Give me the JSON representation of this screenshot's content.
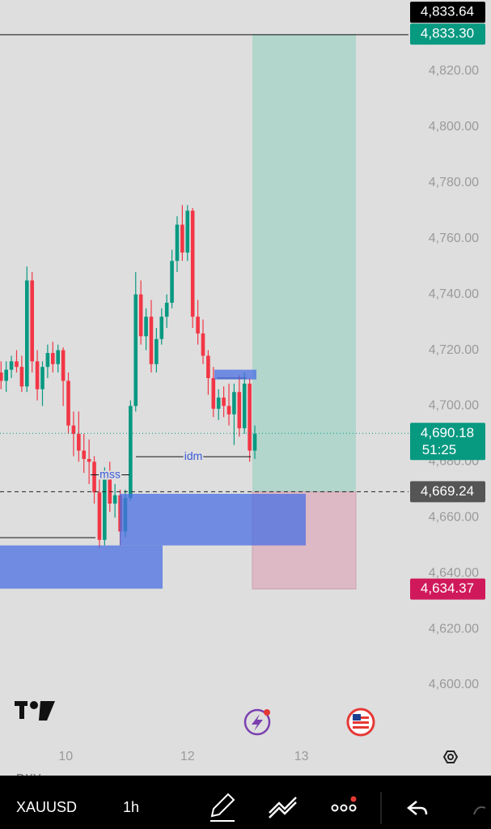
{
  "chart_data": {
    "type": "candlestick",
    "xlim": [
      -0.2,
      94.6
    ],
    "ylim": [
      4600,
      4820
    ],
    "yticks": [
      {
        "value": 4820,
        "label": "4,820.00"
      },
      {
        "value": 4800,
        "label": "4,800.00"
      },
      {
        "value": 4780,
        "label": "4,780.00"
      },
      {
        "value": 4760,
        "label": "4,760.00"
      },
      {
        "value": 4740,
        "label": "4,740.00"
      },
      {
        "value": 4720,
        "label": "4,720.00"
      },
      {
        "value": 4700,
        "label": "4,700.00"
      },
      {
        "value": 4680,
        "label": "4,680.00"
      },
      {
        "value": 4660,
        "label": "4,660.00"
      },
      {
        "value": 4640,
        "label": "4,640.00"
      },
      {
        "value": 4620,
        "label": "4,620.00"
      },
      {
        "value": 4600,
        "label": "4,600.00"
      }
    ],
    "xticks": [
      {
        "value": 12.5,
        "label": "10"
      },
      {
        "value": 36,
        "label": "12"
      },
      {
        "value": 58,
        "label": "13"
      }
    ],
    "up_color": "#089981",
    "down_color": "#f23645",
    "open": [
      4712,
      4709,
      4713,
      4716,
      4714,
      4707,
      4745,
      4716,
      4706,
      4714,
      4719,
      4715,
      4720,
      4709,
      4693,
      4690,
      4684,
      4681,
      4680,
      4669,
      4652,
      4675,
      4665,
      4668,
      4655,
      4667,
      4700,
      4740,
      4725,
      4732,
      4715,
      4724,
      4732,
      4737,
      4752,
      4765,
      4755,
      4770,
      4732,
      4726,
      4718,
      4710,
      4699,
      4703,
      4700,
      4697,
      4705,
      4692,
      4708,
      4684
    ],
    "high": [
      4716,
      4716,
      4718,
      4720,
      4718,
      4750,
      4748,
      4720,
      4716,
      4722,
      4723,
      4722,
      4721,
      4712,
      4698,
      4698,
      4690,
      4688,
      4682,
      4675,
      4678,
      4680,
      4672,
      4670,
      4670,
      4702,
      4748,
      4745,
      4735,
      4738,
      4728,
      4735,
      4740,
      4756,
      4768,
      4772,
      4772,
      4771,
      4738,
      4731,
      4720,
      4714,
      4706,
      4707,
      4708,
      4708,
      4711,
      4712,
      4710,
      4693
    ],
    "low": [
      4706,
      4705,
      4710,
      4712,
      4705,
      4705,
      4712,
      4702,
      4700,
      4710,
      4712,
      4712,
      4700,
      4690,
      4682,
      4680,
      4676,
      4672,
      4665,
      4649,
      4650,
      4662,
      4660,
      4650,
      4653,
      4666,
      4698,
      4722,
      4720,
      4712,
      4712,
      4722,
      4728,
      4735,
      4748,
      4752,
      4752,
      4728,
      4722,
      4715,
      4704,
      4696,
      4695,
      4696,
      4693,
      4686,
      4689,
      4690,
      4680,
      4681
    ],
    "close": [
      4709,
      4713,
      4716,
      4714,
      4707,
      4745,
      4716,
      4706,
      4714,
      4719,
      4715,
      4720,
      4709,
      4693,
      4690,
      4684,
      4681,
      4680,
      4669,
      4652,
      4675,
      4665,
      4668,
      4655,
      4667,
      4700,
      4740,
      4725,
      4732,
      4715,
      4724,
      4732,
      4737,
      4752,
      4765,
      4755,
      4770,
      4732,
      4726,
      4718,
      4710,
      4699,
      4703,
      4700,
      4697,
      4705,
      4692,
      4708,
      4684,
      4690
    ],
    "zones": [
      {
        "top": 4668.5,
        "bottom": 4650
      },
      {
        "top": 4650,
        "bottom": 4634.5
      },
      {
        "top": 4713,
        "bottom": 4709.5
      }
    ],
    "levels": [
      {
        "value": 4833.1
      },
      {
        "value": 4652.8
      },
      {
        "value": 4675.3,
        "label": "mss"
      },
      {
        "value": 4681.8,
        "label": "idm"
      },
      {
        "value": 4710,
        "label": null
      }
    ],
    "position": {
      "target": 4833.3,
      "entry": 4669.24,
      "stop": 4634.37
    },
    "price_labels": [
      {
        "value": 4833.64,
        "label": "4,833.64",
        "color": "#000000"
      },
      {
        "value": 4833.3,
        "label": "4,833.30",
        "color": "#089981"
      },
      {
        "value": 4690.18,
        "label": "4,690.18",
        "color": "#089981",
        "countdown": "51:25"
      },
      {
        "value": 4669.24,
        "label": "4,669.24",
        "color": "#555555"
      },
      {
        "value": 4634.37,
        "label": "4,634.37",
        "color": "#d0195a"
      }
    ]
  },
  "toolbar": {
    "symbol": "XAUUSD",
    "interval": "1h",
    "hidden_symbol": "DXY"
  }
}
